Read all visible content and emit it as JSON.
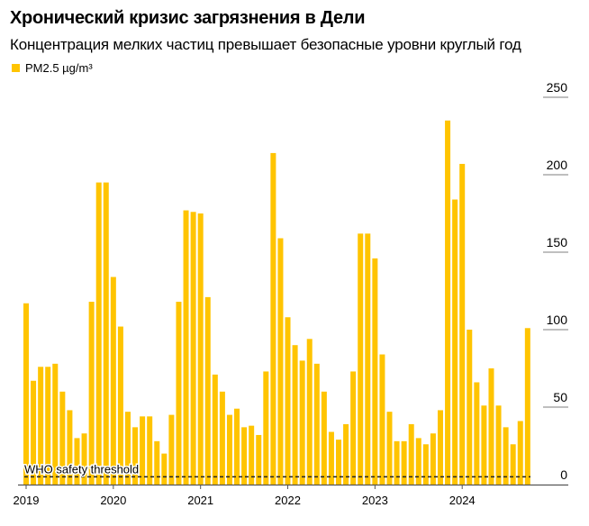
{
  "chart_data": {
    "type": "bar",
    "title": "Хронический кризис загрязнения в Дели",
    "subtitle": "Концентрация мелких частиц превышает безопасные уровни круглый год",
    "legend": [
      {
        "name": "PM2.5 µg/m³",
        "color": "#FFC400"
      }
    ],
    "legend_placement": "top-left",
    "x_start": "2019-01",
    "x_end": "2024-10",
    "x_ticks": [
      "2019",
      "2020",
      "2021",
      "2022",
      "2023",
      "2024"
    ],
    "y_ticks": [
      0,
      50,
      100,
      150,
      200,
      250
    ],
    "ylim": [
      0,
      250
    ],
    "y_axis_side": "right",
    "series": [
      {
        "name": "PM2.5 µg/m³",
        "values": [
          117,
          67,
          76,
          76,
          78,
          60,
          48,
          30,
          33,
          118,
          195,
          195,
          134,
          102,
          47,
          37,
          44,
          44,
          28,
          20,
          45,
          118,
          177,
          176,
          175,
          121,
          71,
          60,
          45,
          49,
          37,
          38,
          32,
          73,
          214,
          159,
          108,
          90,
          80,
          94,
          78,
          60,
          34,
          29,
          39,
          73,
          162,
          162,
          146,
          84,
          47,
          28,
          28,
          39,
          30,
          26,
          33,
          48,
          235,
          184,
          207,
          100,
          66,
          51,
          75,
          51,
          37,
          26,
          41,
          101
        ]
      }
    ],
    "threshold": {
      "label": "WHO safety threshold",
      "value": 5,
      "style": "dashed"
    },
    "bar_color": "#FFC400",
    "grid": "short right-side gridlines"
  }
}
